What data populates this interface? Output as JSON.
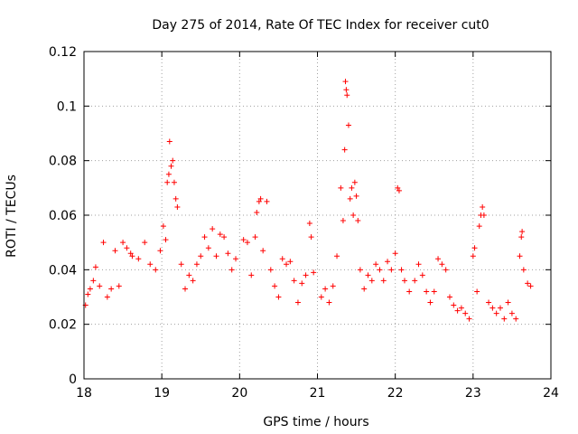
{
  "chart_data": {
    "type": "scatter",
    "title": "Day 275 of 2014, Rate Of TEC Index for receiver cut0",
    "xlabel": "GPS time / hours",
    "ylabel": "ROTI / TECUs",
    "xlim": [
      18,
      24
    ],
    "ylim": [
      0,
      0.12
    ],
    "x_ticks": [
      18,
      19,
      20,
      21,
      22,
      23,
      24
    ],
    "y_ticks": [
      0,
      0.02,
      0.04,
      0.06,
      0.08,
      0.1,
      0.12
    ],
    "x_tick_labels": [
      "18",
      "19",
      "20",
      "21",
      "22",
      "23",
      "24"
    ],
    "y_tick_labels": [
      "0",
      "0.02",
      "0.04",
      "0.06",
      "0.08",
      "0.1",
      "0.12"
    ],
    "grid": true,
    "marker": "+",
    "series": [
      {
        "name": "ROTI",
        "color": "#ff0000",
        "points": [
          [
            18.02,
            0.027
          ],
          [
            18.05,
            0.031
          ],
          [
            18.08,
            0.033
          ],
          [
            18.12,
            0.036
          ],
          [
            18.15,
            0.041
          ],
          [
            18.2,
            0.034
          ],
          [
            18.25,
            0.05
          ],
          [
            18.3,
            0.03
          ],
          [
            18.35,
            0.033
          ],
          [
            18.4,
            0.047
          ],
          [
            18.45,
            0.034
          ],
          [
            18.5,
            0.05
          ],
          [
            18.55,
            0.048
          ],
          [
            18.6,
            0.046
          ],
          [
            18.62,
            0.045
          ],
          [
            18.7,
            0.044
          ],
          [
            18.78,
            0.05
          ],
          [
            18.85,
            0.042
          ],
          [
            18.92,
            0.04
          ],
          [
            18.98,
            0.047
          ],
          [
            19.02,
            0.056
          ],
          [
            19.05,
            0.051
          ],
          [
            19.07,
            0.072
          ],
          [
            19.09,
            0.075
          ],
          [
            19.1,
            0.087
          ],
          [
            19.12,
            0.078
          ],
          [
            19.14,
            0.08
          ],
          [
            19.16,
            0.072
          ],
          [
            19.18,
            0.066
          ],
          [
            19.2,
            0.063
          ],
          [
            19.25,
            0.042
          ],
          [
            19.3,
            0.033
          ],
          [
            19.35,
            0.038
          ],
          [
            19.4,
            0.036
          ],
          [
            19.45,
            0.042
          ],
          [
            19.5,
            0.045
          ],
          [
            19.55,
            0.052
          ],
          [
            19.6,
            0.048
          ],
          [
            19.65,
            0.055
          ],
          [
            19.7,
            0.045
          ],
          [
            19.75,
            0.053
          ],
          [
            19.8,
            0.052
          ],
          [
            19.85,
            0.046
          ],
          [
            19.9,
            0.04
          ],
          [
            19.95,
            0.044
          ],
          [
            20.05,
            0.051
          ],
          [
            20.1,
            0.05
          ],
          [
            20.15,
            0.038
          ],
          [
            20.2,
            0.052
          ],
          [
            20.22,
            0.061
          ],
          [
            20.25,
            0.065
          ],
          [
            20.27,
            0.066
          ],
          [
            20.3,
            0.047
          ],
          [
            20.35,
            0.065
          ],
          [
            20.4,
            0.04
          ],
          [
            20.45,
            0.034
          ],
          [
            20.5,
            0.03
          ],
          [
            20.55,
            0.044
          ],
          [
            20.6,
            0.042
          ],
          [
            20.65,
            0.043
          ],
          [
            20.7,
            0.036
          ],
          [
            20.75,
            0.028
          ],
          [
            20.8,
            0.035
          ],
          [
            20.85,
            0.038
          ],
          [
            20.9,
            0.057
          ],
          [
            20.92,
            0.052
          ],
          [
            20.95,
            0.039
          ],
          [
            21.05,
            0.03
          ],
          [
            21.1,
            0.033
          ],
          [
            21.15,
            0.028
          ],
          [
            21.2,
            0.034
          ],
          [
            21.25,
            0.045
          ],
          [
            21.3,
            0.07
          ],
          [
            21.33,
            0.058
          ],
          [
            21.35,
            0.084
          ],
          [
            21.36,
            0.109
          ],
          [
            21.37,
            0.106
          ],
          [
            21.38,
            0.104
          ],
          [
            21.4,
            0.093
          ],
          [
            21.42,
            0.066
          ],
          [
            21.44,
            0.07
          ],
          [
            21.46,
            0.06
          ],
          [
            21.48,
            0.072
          ],
          [
            21.5,
            0.067
          ],
          [
            21.52,
            0.058
          ],
          [
            21.55,
            0.04
          ],
          [
            21.6,
            0.033
          ],
          [
            21.65,
            0.038
          ],
          [
            21.7,
            0.036
          ],
          [
            21.75,
            0.042
          ],
          [
            21.8,
            0.04
          ],
          [
            21.85,
            0.036
          ],
          [
            21.9,
            0.043
          ],
          [
            21.95,
            0.04
          ],
          [
            22.0,
            0.046
          ],
          [
            22.03,
            0.07
          ],
          [
            22.05,
            0.069
          ],
          [
            22.08,
            0.04
          ],
          [
            22.12,
            0.036
          ],
          [
            22.18,
            0.032
          ],
          [
            22.25,
            0.036
          ],
          [
            22.3,
            0.042
          ],
          [
            22.35,
            0.038
          ],
          [
            22.4,
            0.032
          ],
          [
            22.45,
            0.028
          ],
          [
            22.5,
            0.032
          ],
          [
            22.55,
            0.044
          ],
          [
            22.6,
            0.042
          ],
          [
            22.65,
            0.04
          ],
          [
            22.7,
            0.03
          ],
          [
            22.75,
            0.027
          ],
          [
            22.8,
            0.025
          ],
          [
            22.85,
            0.026
          ],
          [
            22.9,
            0.024
          ],
          [
            22.95,
            0.022
          ],
          [
            23.0,
            0.045
          ],
          [
            23.02,
            0.048
          ],
          [
            23.05,
            0.032
          ],
          [
            23.08,
            0.056
          ],
          [
            23.1,
            0.06
          ],
          [
            23.12,
            0.063
          ],
          [
            23.14,
            0.06
          ],
          [
            23.2,
            0.028
          ],
          [
            23.25,
            0.026
          ],
          [
            23.3,
            0.024
          ],
          [
            23.35,
            0.026
          ],
          [
            23.4,
            0.022
          ],
          [
            23.45,
            0.028
          ],
          [
            23.5,
            0.024
          ],
          [
            23.55,
            0.022
          ],
          [
            23.6,
            0.045
          ],
          [
            23.62,
            0.052
          ],
          [
            23.63,
            0.054
          ],
          [
            23.65,
            0.04
          ],
          [
            23.7,
            0.035
          ],
          [
            23.74,
            0.034
          ]
        ]
      }
    ]
  }
}
